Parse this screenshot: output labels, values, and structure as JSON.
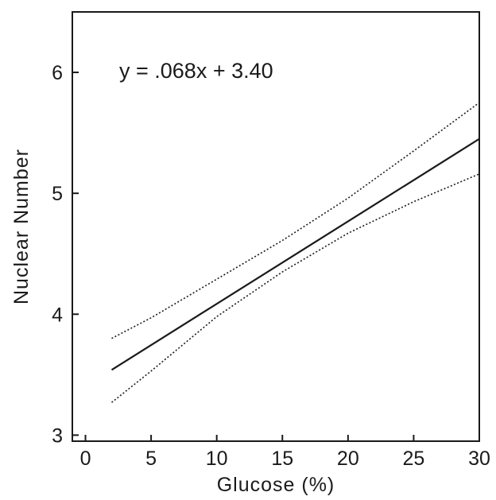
{
  "chart_data": {
    "type": "line",
    "title": "",
    "xlabel": "Glucose (%)",
    "ylabel": "Nuclear Number",
    "xlim": [
      -1,
      30
    ],
    "ylim": [
      2.95,
      6.5
    ],
    "x_ticks": [
      0,
      5,
      10,
      15,
      20,
      25,
      30
    ],
    "y_ticks": [
      3,
      4,
      5,
      6
    ],
    "x_tick_labels": [
      "0",
      "5",
      "10",
      "15",
      "20",
      "25",
      "30"
    ],
    "y_tick_labels": [
      "3",
      "4",
      "5",
      "6"
    ],
    "grid": false,
    "legend": "none",
    "annotation": "y = .068x + 3.40",
    "series": [
      {
        "style": "solid",
        "x": [
          2,
          30
        ],
        "y": [
          3.54,
          5.45
        ]
      },
      {
        "style": "dotted",
        "x": [
          2,
          5,
          10,
          15,
          20,
          25,
          30
        ],
        "y": [
          3.8,
          3.97,
          4.29,
          4.61,
          4.96,
          5.35,
          5.75
        ]
      },
      {
        "style": "dotted",
        "x": [
          2,
          5,
          10,
          15,
          20,
          25,
          30
        ],
        "y": [
          3.27,
          3.53,
          3.98,
          4.35,
          4.67,
          4.93,
          5.16
        ]
      }
    ]
  }
}
